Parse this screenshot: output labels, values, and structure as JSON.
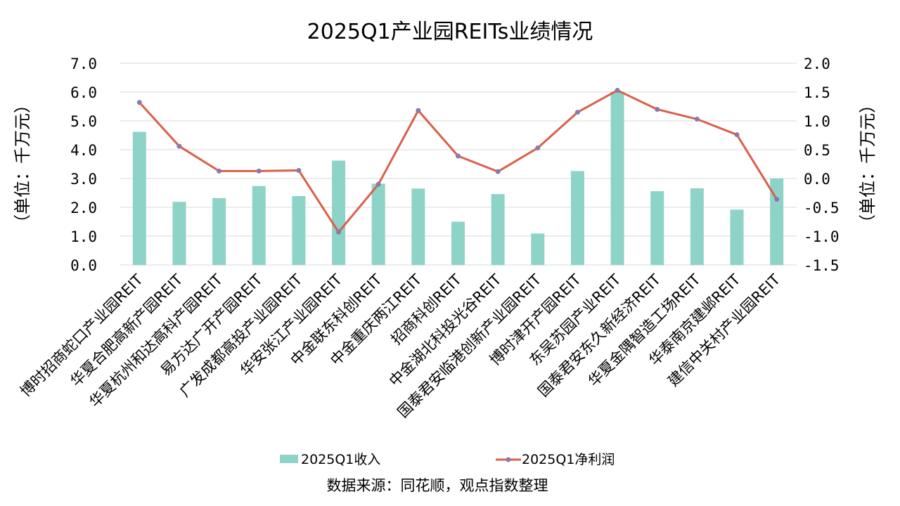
{
  "chart_data": {
    "type": "bar",
    "title": "2025Q1产业园REITs业绩情况",
    "categories": [
      "博时招商蛇口产业园REIT",
      "华夏合肥高新产园REIT",
      "华夏杭州和达高科产园REIT",
      "易方达广开产园REIT",
      "广发成都高投产业园REIT",
      "华安张江产业园REIT",
      "中金联东科创REIT",
      "中金重庆两江REIT",
      "招商科创REIT",
      "中金湖北科投光谷REIT",
      "国泰君安临港创新产业园REIT",
      "博时津开产园REIT",
      "东吴苏园产业REIT",
      "国泰君安东久新经济REIT",
      "华夏金隅智造工场REIT",
      "华泰南京建邺REIT",
      "建信中关村产业园REIT"
    ],
    "series": [
      {
        "name": "2025Q1收入",
        "type": "bar",
        "axis": "left",
        "color": "#8dd3c7",
        "values": [
          4.62,
          2.19,
          2.32,
          2.74,
          2.39,
          3.62,
          2.82,
          2.65,
          1.5,
          2.46,
          1.09,
          3.26,
          6.01,
          2.56,
          2.66,
          1.92,
          3.0
        ]
      },
      {
        "name": "2025Q1净利润",
        "type": "line",
        "axis": "right",
        "color": "#d9604a",
        "marker_color": "#8c79a8",
        "values": [
          1.32,
          0.56,
          0.13,
          0.13,
          0.14,
          -0.93,
          -0.1,
          1.18,
          0.39,
          0.12,
          0.53,
          1.15,
          1.53,
          1.2,
          1.03,
          0.76,
          -0.36
        ]
      }
    ],
    "y_left": {
      "label": "（单位：千万元）",
      "ylim": [
        0,
        7
      ],
      "ticks": [
        "0.0",
        "1.0",
        "2.0",
        "3.0",
        "4.0",
        "5.0",
        "6.0",
        "7.0"
      ]
    },
    "y_right": {
      "label": "（单位：千万元）",
      "ylim": [
        -1.5,
        2
      ],
      "ticks": [
        "-1.5",
        "-1.0",
        "-0.5",
        "0.0",
        "0.5",
        "1.0",
        "1.5",
        "2.0"
      ]
    },
    "grid": true,
    "legend": "bottom",
    "source": "数据来源：同花顺，观点指数整理"
  }
}
